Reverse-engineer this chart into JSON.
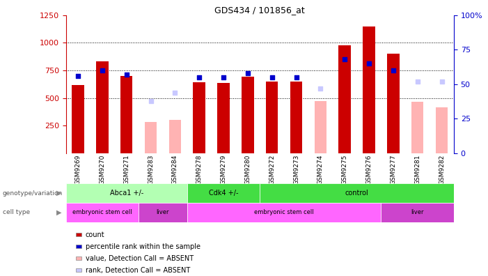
{
  "title": "GDS434 / 101856_at",
  "samples": [
    "GSM9269",
    "GSM9270",
    "GSM9271",
    "GSM9283",
    "GSM9284",
    "GSM9278",
    "GSM9279",
    "GSM9280",
    "GSM9272",
    "GSM9273",
    "GSM9274",
    "GSM9275",
    "GSM9276",
    "GSM9277",
    "GSM9281",
    "GSM9282"
  ],
  "count_values": [
    620,
    830,
    700,
    null,
    null,
    640,
    635,
    690,
    650,
    650,
    null,
    980,
    1150,
    900,
    null,
    null
  ],
  "count_absent": [
    null,
    null,
    null,
    280,
    300,
    null,
    null,
    null,
    null,
    null,
    470,
    null,
    null,
    null,
    465,
    415
  ],
  "rank_values": [
    56,
    60,
    57,
    null,
    null,
    55,
    55,
    58,
    55,
    55,
    null,
    68,
    65,
    60,
    null,
    null
  ],
  "rank_absent": [
    null,
    null,
    null,
    38,
    44,
    null,
    null,
    null,
    null,
    null,
    47,
    null,
    null,
    null,
    52,
    52
  ],
  "ylim_left": [
    0,
    1250
  ],
  "ylim_right": [
    0,
    100
  ],
  "yticks_left": [
    250,
    500,
    750,
    1000,
    1250
  ],
  "yticks_right": [
    0,
    25,
    50,
    75,
    100
  ],
  "count_color": "#cc0000",
  "count_absent_color": "#ffb3b3",
  "rank_color": "#0000cc",
  "rank_absent_color": "#c8c8ff",
  "genotype_groups": [
    {
      "label": "Abca1 +/-",
      "start": 0,
      "end": 4,
      "color": "#b3ffb3"
    },
    {
      "label": "Cdk4 +/-",
      "start": 5,
      "end": 7,
      "color": "#44dd44"
    },
    {
      "label": "control",
      "start": 8,
      "end": 15,
      "color": "#44dd44"
    }
  ],
  "celltype_groups": [
    {
      "label": "embryonic stem cell",
      "start": 0,
      "end": 2,
      "color": "#ff66ff"
    },
    {
      "label": "liver",
      "start": 3,
      "end": 4,
      "color": "#cc44cc"
    },
    {
      "label": "embryonic stem cell",
      "start": 5,
      "end": 12,
      "color": "#ff66ff"
    },
    {
      "label": "liver",
      "start": 13,
      "end": 15,
      "color": "#cc44cc"
    }
  ],
  "legend_items": [
    {
      "label": "count",
      "color": "#cc0000"
    },
    {
      "label": "percentile rank within the sample",
      "color": "#0000cc"
    },
    {
      "label": "value, Detection Call = ABSENT",
      "color": "#ffb3b3"
    },
    {
      "label": "rank, Detection Call = ABSENT",
      "color": "#c8c8ff"
    }
  ],
  "genotype_label": "genotype/variation",
  "celltype_label": "cell type",
  "xtick_bg": "#cccccc"
}
